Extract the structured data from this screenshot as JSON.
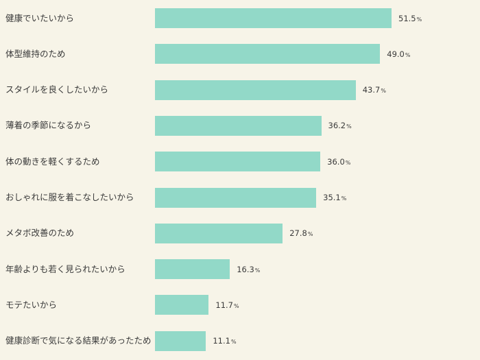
{
  "chart_data": {
    "type": "bar",
    "orientation": "horizontal",
    "categories": [
      "健康でいたいから",
      "体型維持のため",
      "スタイルを良くしたいから",
      "薄着の季節になるから",
      "体の動きを軽くするため",
      "おしゃれに服を着こなしたいから",
      "メタボ改善のため",
      "年齢よりも若く見られたいから",
      "モテたいから",
      "健康診断で気になる結果があったため"
    ],
    "values": [
      51.5,
      49.0,
      43.7,
      36.2,
      36.0,
      35.1,
      27.8,
      16.3,
      11.7,
      11.1
    ],
    "value_labels": [
      "51.5",
      "49.0",
      "43.7",
      "36.2",
      "36.0",
      "35.1",
      "27.8",
      "16.3",
      "11.7",
      "11.1"
    ],
    "unit": "%",
    "bar_color": "#92d9c8",
    "background_color": "#f7f4e8",
    "grid": false
  }
}
